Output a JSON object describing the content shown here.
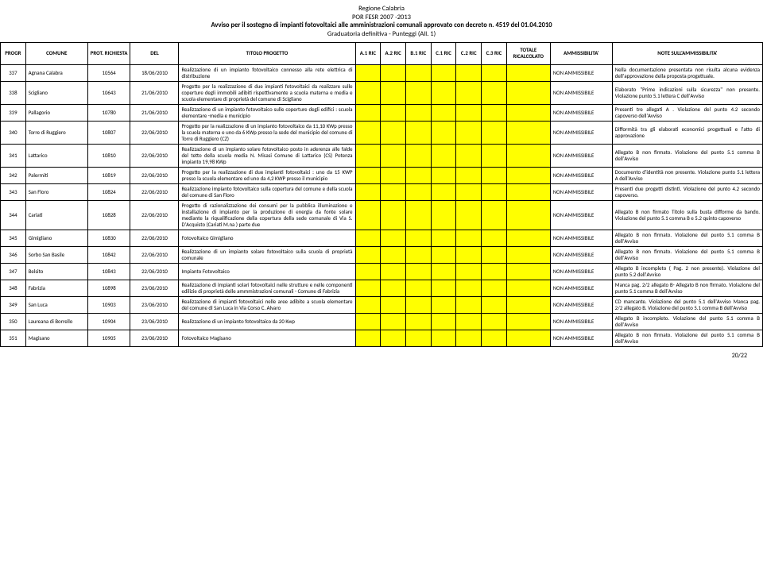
{
  "header": {
    "line1": "Regione Calabria",
    "line2": "POR FESR 2007 -2013",
    "line3": "Avviso per il sostegno di impianti fotovoltaici alle amministrazioni comunali approvato con decreto n. 4519 del 01.04.2010",
    "line4": "Graduatoria definitiva - Punteggi (All. 1)"
  },
  "columns": [
    "PROGR",
    "COMUNE",
    "PROT. RICHIESTA",
    "DEL",
    "TITOLO PROGETTO",
    "A.1 RIC",
    "A.2 RIC",
    "B.1 RIC",
    "C.1 RIC",
    "C.2 RIC",
    "C.3 RIC",
    "TOTALE RICALCOLATO",
    "AMMISSIBILITA'",
    "NOTE SULL'AMMISSIBILITA'"
  ],
  "rows": [
    {
      "progr": "337",
      "comune": "Agnana Calabra",
      "prot": "10564",
      "del": "18/06/2010",
      "titolo": "Realizzazione di un impianto fotovoltaico connesso alla rete elettrica di distribuzione",
      "amm": "NON AMMISSIBILE",
      "note": "Nella documentazione presentata non risulta alcuna evidenza dell'approvazione della proposta progettuale."
    },
    {
      "progr": "338",
      "comune": "Scigliano",
      "prot": "10643",
      "del": "21/06/2010",
      "titolo": "Progetto per la realizzazione di due impianti fotovoltaici da realizzare sulle coperture degli immobili adibiti rispettivamente a scuola materna e media e scuola elementare di proprietà del comune di Scigliano",
      "amm": "NON AMMISSIBILE",
      "note": "Elaborato \"Prime indicazioni sulla sicurezza\" non presente. Violazione punto 5.1 lettera C dell'Avviso"
    },
    {
      "progr": "339",
      "comune": "Pallagorio",
      "prot": "10780",
      "del": "21/06/2010",
      "titolo": "Realizzazione di un impianto fotovoltaico sulle coperture degli edifici : scuola elementare -media e municipio",
      "amm": "NON AMMISSIBILE",
      "note": "Presenti tre allegati A . Violazione del punto 4.2 secondo capoverso dell'Avviso"
    },
    {
      "progr": "340",
      "comune": "Torre di Ruggiero",
      "prot": "10807",
      "del": "22/06/2010",
      "titolo": "Progetto per la realizzazione di un impianto fotovoltaico da 11,10 KWp presso la scuola materna e uno da 6 KWp presso la sede del municipio del comune di Torre di Ruggiero (CZ)",
      "amm": "NON AMMISSIBILE",
      "note": "Difformità tra gli elaborati economici progettuali e l'atto di approvazione"
    },
    {
      "progr": "341",
      "comune": "Lattarico",
      "prot": "10810",
      "del": "22/06/2010",
      "titolo": "Realizzazione di un impianto solare fotovoltaico posto in aderenza alle falde del tetto della scuola media N. Misasi Comune di Lattarico (CS) Potenza impianto 19,98 KWp",
      "amm": "NON AMMISSIBILE",
      "note": "Allegato B non firmato. Violazione del punto 5.1 comma B dell'Avviso"
    },
    {
      "progr": "342",
      "comune": "Palermiti",
      "prot": "10819",
      "del": "22/06/2010",
      "titolo": "Progetto per la realizzazione di due impianti fotovoltaici : uno da 15 KWP presso la scuola elementare ed uno da 4,2 KWP presso il municipio",
      "amm": "NON AMMISSIBILE",
      "note": "Documento d'identità non presente. Violazione punto 5.1 lettera A dell'Avviso"
    },
    {
      "progr": "343",
      "comune": "San Floro",
      "prot": "10824",
      "del": "22/06/2010",
      "titolo": "Realizzazione impianto fotovoltaico sulla copertura del comune e della scuola del comune di San Floro",
      "amm": "NON AMMISSIBILE",
      "note": "Presenti due progetti distinti. Violazione del punto 4.2 secondo capoverso."
    },
    {
      "progr": "344",
      "comune": "Cariati",
      "prot": "10828",
      "del": "22/06/2010",
      "titolo": "Progetto di razionalizzazione dei consumi per la pubblica illuminazione e installazione di impianto per la produzione di energia da fonte solare mediante la riqualificazione della copertura della sede comunale di Via S. D'Acquisto (Cariati M.na ) parte due",
      "amm": "NON AMMISSIBILE",
      "note": "Allegato B non firmato Titolo sulla busta difforme da bando. Violazione del punto 5.1 comma B e 5.2 quinto capoverso"
    },
    {
      "progr": "345",
      "comune": "Gimigliano",
      "prot": "10830",
      "del": "22/06/2010",
      "titolo": "Fotovoltaico Gimigliano",
      "amm": "NON AMMISSIBILE",
      "note": "Allegato B non firmato. Violazione del punto 5.1 comma B dell'Avviso"
    },
    {
      "progr": "346",
      "comune": "Sorbo San Basile",
      "prot": "10842",
      "del": "22/06/2010",
      "titolo": "Realizzazione di un impianto solare fotovoltaico sulla scuola di proprietà comunale",
      "amm": "NON AMMISSIBILE",
      "note": "Allegato B non firmato. Violazione del punto 5.1 comma B dell'Avviso"
    },
    {
      "progr": "347",
      "comune": "Belsito",
      "prot": "10843",
      "del": "22/06/2010",
      "titolo": "Impianto Fotovoltaico",
      "amm": "NON AMMISSIBILE",
      "note": "Allegato B incompleto ( Pag. 2 non presente). Violazione del punto 5.2 dell'Avviso"
    },
    {
      "progr": "348",
      "comune": "Fabrizia",
      "prot": "10898",
      "del": "23/06/2010",
      "titolo": "Realizzazione di impianti solari fotovoltaici nelle strutture e nelle componenti edilizie di proprietà delle ammmistrazioni comunali - Comune di Fabrizia",
      "amm": "NON AMMISSIBILE",
      "note": "Manca pag. 2/2 allegato B- Allegato B non firmato. Violazione del punto 5.1 comma B dell'Avviso"
    },
    {
      "progr": "349",
      "comune": "San Luca",
      "prot": "10903",
      "del": "23/06/2010",
      "titolo": "Realizzazione di impianti fotovoltaici nelle aree adibite a scuola elementare del comune di San Luca in Via Corso C. Alvaro",
      "amm": "NON AMMISSIBILE",
      "note": "CD mancante. Violazione del punto 5.1 dell'Avviso Manca pag. 2/2 allegato B. Violazione del punto 5.1 comma B dell'Avviso"
    },
    {
      "progr": "350",
      "comune": "Laureana di Borrello",
      "prot": "10904",
      "del": "23/06/2010",
      "titolo": "Realizzazione di un impianto fotovoltaico da 20 Kwp",
      "amm": "NON AMMISSIBILE",
      "note": "Allegato B incompleto. Violazione del punto 5.1 comma B dell'Avviso"
    },
    {
      "progr": "351",
      "comune": "Magisano",
      "prot": "10905",
      "del": "23/06/2010",
      "titolo": "Fotovoltaico Magisano",
      "amm": "NON AMMISSIBILE",
      "note": "Allegato B non firmato. Violazione del punto 5.1 comma B dell'Avviso"
    }
  ],
  "footer": "20/22"
}
